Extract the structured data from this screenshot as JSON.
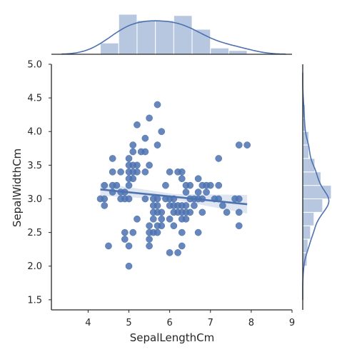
{
  "chart_data": {
    "type": "scatter",
    "subtype": "jointplot-regression",
    "title": "",
    "xlabel": "SepalLengthCm",
    "ylabel": "SepalWidthCm",
    "xlim": [
      3.1,
      9.0
    ],
    "ylim": [
      1.35,
      5.0
    ],
    "xticks": [
      "4",
      "5",
      "6",
      "7",
      "8",
      "9"
    ],
    "yticks": [
      "1.5",
      "2.0",
      "2.5",
      "3.0",
      "3.5",
      "4.0",
      "4.5",
      "5.0"
    ],
    "grid": false,
    "color": "#4c72b0",
    "points": [
      [
        4.3,
        3.0
      ],
      [
        4.4,
        2.9
      ],
      [
        4.4,
        3.0
      ],
      [
        4.4,
        3.2
      ],
      [
        4.5,
        2.3
      ],
      [
        4.6,
        3.1
      ],
      [
        4.6,
        3.4
      ],
      [
        4.6,
        3.6
      ],
      [
        4.6,
        3.2
      ],
      [
        4.7,
        3.2
      ],
      [
        4.8,
        3.0
      ],
      [
        4.8,
        3.4
      ],
      [
        4.8,
        3.1
      ],
      [
        4.9,
        3.0
      ],
      [
        4.9,
        3.1
      ],
      [
        4.9,
        2.4
      ],
      [
        4.9,
        2.5
      ],
      [
        5.0,
        3.6
      ],
      [
        5.0,
        3.4
      ],
      [
        5.0,
        3.0
      ],
      [
        5.0,
        3.3
      ],
      [
        5.0,
        3.5
      ],
      [
        5.0,
        3.2
      ],
      [
        5.0,
        2.0
      ],
      [
        5.0,
        2.3
      ],
      [
        5.1,
        3.5
      ],
      [
        5.1,
        3.8
      ],
      [
        5.1,
        3.3
      ],
      [
        5.1,
        3.4
      ],
      [
        5.1,
        3.7
      ],
      [
        5.1,
        2.5
      ],
      [
        5.2,
        3.5
      ],
      [
        5.2,
        3.4
      ],
      [
        5.2,
        4.1
      ],
      [
        5.2,
        2.7
      ],
      [
        5.3,
        3.7
      ],
      [
        5.4,
        3.9
      ],
      [
        5.4,
        3.7
      ],
      [
        5.4,
        3.4
      ],
      [
        5.4,
        3.0
      ],
      [
        5.5,
        4.2
      ],
      [
        5.5,
        3.5
      ],
      [
        5.5,
        2.3
      ],
      [
        5.5,
        2.4
      ],
      [
        5.5,
        2.6
      ],
      [
        5.5,
        2.5
      ],
      [
        5.6,
        2.9
      ],
      [
        5.6,
        3.0
      ],
      [
        5.6,
        2.5
      ],
      [
        5.6,
        2.8
      ],
      [
        5.6,
        2.7
      ],
      [
        5.7,
        4.4
      ],
      [
        5.7,
        3.8
      ],
      [
        5.7,
        2.8
      ],
      [
        5.7,
        2.6
      ],
      [
        5.7,
        3.0
      ],
      [
        5.7,
        2.9
      ],
      [
        5.7,
        2.5
      ],
      [
        5.8,
        4.0
      ],
      [
        5.8,
        2.7
      ],
      [
        5.8,
        2.6
      ],
      [
        5.8,
        2.8
      ],
      [
        5.9,
        3.0
      ],
      [
        5.9,
        3.2
      ],
      [
        6.0,
        2.2
      ],
      [
        6.0,
        2.9
      ],
      [
        6.0,
        3.4
      ],
      [
        6.0,
        2.7
      ],
      [
        6.0,
        3.0
      ],
      [
        6.1,
        2.9
      ],
      [
        6.1,
        2.8
      ],
      [
        6.1,
        3.0
      ],
      [
        6.1,
        2.6
      ],
      [
        6.2,
        2.2
      ],
      [
        6.2,
        2.9
      ],
      [
        6.2,
        2.8
      ],
      [
        6.2,
        3.4
      ],
      [
        6.3,
        3.3
      ],
      [
        6.3,
        2.5
      ],
      [
        6.3,
        2.3
      ],
      [
        6.3,
        2.9
      ],
      [
        6.3,
        2.8
      ],
      [
        6.3,
        2.7
      ],
      [
        6.3,
        3.4
      ],
      [
        6.4,
        3.2
      ],
      [
        6.4,
        2.9
      ],
      [
        6.4,
        2.7
      ],
      [
        6.4,
        2.8
      ],
      [
        6.4,
        3.1
      ],
      [
        6.5,
        2.8
      ],
      [
        6.5,
        3.0
      ],
      [
        6.5,
        3.2
      ],
      [
        6.6,
        2.9
      ],
      [
        6.6,
        3.0
      ],
      [
        6.7,
        3.1
      ],
      [
        6.7,
        3.0
      ],
      [
        6.7,
        2.5
      ],
      [
        6.7,
        3.3
      ],
      [
        6.8,
        2.8
      ],
      [
        6.8,
        3.0
      ],
      [
        6.8,
        3.2
      ],
      [
        6.9,
        3.1
      ],
      [
        6.9,
        3.2
      ],
      [
        7.0,
        3.2
      ],
      [
        7.1,
        3.0
      ],
      [
        7.2,
        3.6
      ],
      [
        7.2,
        3.2
      ],
      [
        7.2,
        3.0
      ],
      [
        7.3,
        2.9
      ],
      [
        7.4,
        2.8
      ],
      [
        7.6,
        3.0
      ],
      [
        7.7,
        3.8
      ],
      [
        7.7,
        2.6
      ],
      [
        7.7,
        2.8
      ],
      [
        7.7,
        3.0
      ],
      [
        7.9,
        3.8
      ]
    ],
    "regression": {
      "x": [
        4.3,
        7.9
      ],
      "y": [
        3.14,
        2.92
      ]
    },
    "x_hist": {
      "bins": [
        4.3,
        4.75,
        5.2,
        5.65,
        6.1,
        6.55,
        7.0,
        7.45,
        7.9
      ],
      "counts": [
        9,
        32,
        27,
        27,
        31,
        20,
        5,
        3
      ]
    },
    "y_hist": {
      "bins": [
        2.0,
        2.2,
        2.4,
        2.6,
        2.8,
        3.0,
        3.2,
        3.4,
        3.6,
        3.8,
        4.0,
        4.2,
        4.4
      ],
      "counts": [
        5,
        6,
        9,
        13,
        23,
        33,
        21,
        14,
        7,
        7,
        3,
        3
      ]
    }
  }
}
